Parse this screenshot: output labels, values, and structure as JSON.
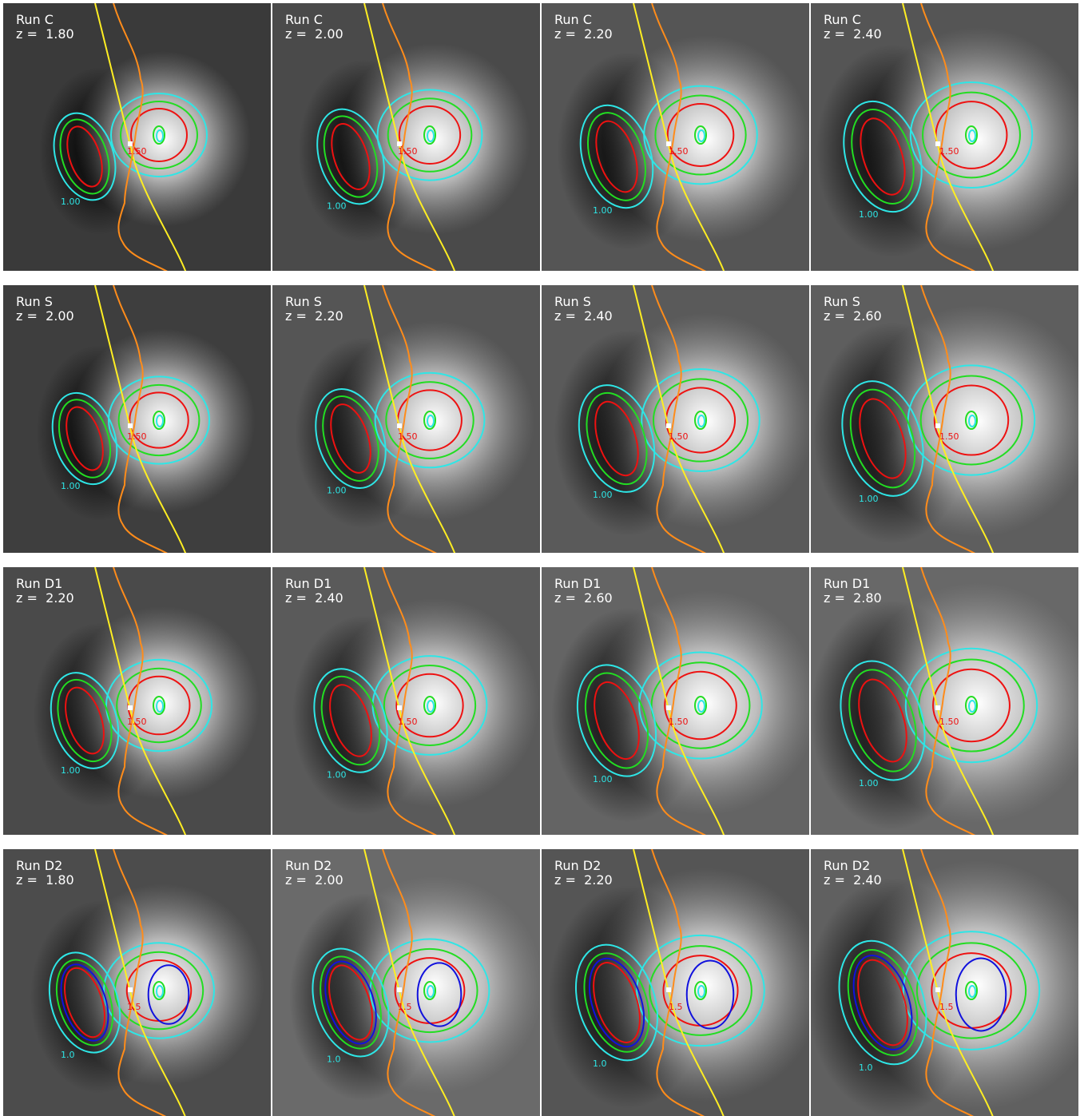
{
  "panels": [
    {
      "run": "Run C",
      "z": "z =  1.80",
      "contour_labels": [
        "1.00",
        "1.50"
      ]
    },
    {
      "run": "Run C",
      "z": "z =  2.00",
      "contour_labels": [
        "1.00",
        "1.50"
      ]
    },
    {
      "run": "Run C",
      "z": "z =  2.20",
      "contour_labels": [
        "1.00",
        "1.50"
      ]
    },
    {
      "run": "Run C",
      "z": "z =  2.40",
      "contour_labels": [
        "1.00",
        "1.50"
      ]
    },
    {
      "run": "Run S",
      "z": "z =  2.00",
      "contour_labels": [
        "1.00",
        "1.50"
      ]
    },
    {
      "run": "Run S",
      "z": "z =  2.20",
      "contour_labels": [
        "1.00",
        "1.50"
      ]
    },
    {
      "run": "Run S",
      "z": "z =  2.40",
      "contour_labels": [
        "1.00",
        "1.50"
      ]
    },
    {
      "run": "Run S",
      "z": "z =  2.60",
      "contour_labels": [
        "1.00",
        "1.50"
      ]
    },
    {
      "run": "Run D1",
      "z": "z =  2.20",
      "contour_labels": [
        "1.00",
        "1.50"
      ]
    },
    {
      "run": "Run D1",
      "z": "z =  2.40",
      "contour_labels": [
        "1.00",
        "1.50"
      ]
    },
    {
      "run": "Run D1",
      "z": "z =  2.60",
      "contour_labels": [
        "1.00",
        "1.50"
      ]
    },
    {
      "run": "Run D1",
      "z": "z =  2.80",
      "contour_labels": [
        "1.00",
        "1.50"
      ]
    },
    {
      "run": "Run D2",
      "z": "z =  1.80",
      "contour_labels": [
        "1.0",
        "1.5"
      ]
    },
    {
      "run": "Run D2",
      "z": "z =  2.00",
      "contour_labels": [
        "1.0",
        "1.5"
      ]
    },
    {
      "run": "Run D2",
      "z": "z =  2.20",
      "contour_labels": [
        "1.0",
        "1.5"
      ]
    },
    {
      "run": "Run D2",
      "z": "z =  2.40",
      "contour_labels": [
        "1.0",
        "1.5"
      ]
    }
  ]
}
